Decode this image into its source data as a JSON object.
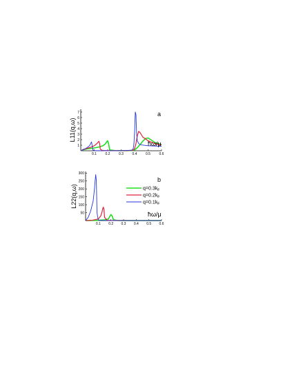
{
  "chart_data": [
    {
      "type": "line",
      "panel_label": "a",
      "ylabel": "L11(q,ω)",
      "xlabel": "ħω/μ",
      "xlim": [
        0,
        0.6
      ],
      "ylim": [
        0,
        7.5
      ],
      "xticks": [
        0.1,
        0.2,
        0.3,
        0.4,
        0.5,
        0.6
      ],
      "yticks": [
        1,
        2,
        3,
        4,
        5,
        6,
        7
      ],
      "series": [
        {
          "name": "q=0.3k_F",
          "color": "#22dd22",
          "width": 1.6,
          "x": [
            0.0,
            0.02,
            0.05,
            0.1,
            0.14,
            0.165,
            0.185,
            0.195,
            0.2,
            0.207,
            0.215,
            0.25,
            0.3,
            0.35,
            0.385,
            0.4,
            0.42,
            0.44,
            0.46,
            0.48,
            0.5,
            0.52,
            0.55,
            0.6
          ],
          "y": [
            0.0,
            0.2,
            0.35,
            0.5,
            0.7,
            0.9,
            1.3,
            1.7,
            1.8,
            1.2,
            0.15,
            0.04,
            0.02,
            0.02,
            0.05,
            0.15,
            0.55,
            1.1,
            1.7,
            2.2,
            2.3,
            2.0,
            1.5,
            1.1
          ]
        },
        {
          "name": "q=0.2k_F",
          "color": "#e0203a",
          "width": 1.2,
          "x": [
            0.0,
            0.02,
            0.05,
            0.08,
            0.1,
            0.12,
            0.13,
            0.135,
            0.14,
            0.145,
            0.16,
            0.2,
            0.3,
            0.35,
            0.39,
            0.4,
            0.41,
            0.42,
            0.43,
            0.44,
            0.46,
            0.5,
            0.55,
            0.6
          ],
          "y": [
            0.0,
            0.25,
            0.45,
            0.7,
            0.9,
            1.3,
            1.6,
            1.7,
            1.3,
            0.3,
            0.05,
            0.02,
            0.02,
            0.03,
            0.1,
            0.4,
            1.3,
            2.7,
            3.5,
            3.3,
            2.5,
            1.8,
            1.3,
            1.05
          ]
        },
        {
          "name": "q=0.1k_F",
          "color": "#2233dd",
          "width": 0.9,
          "x": [
            0.0,
            0.02,
            0.04,
            0.06,
            0.07,
            0.075,
            0.08,
            0.085,
            0.09,
            0.1,
            0.2,
            0.3,
            0.38,
            0.39,
            0.395,
            0.4,
            0.405,
            0.41,
            0.415,
            0.42,
            0.43,
            0.45,
            0.5,
            0.6
          ],
          "y": [
            0.0,
            0.2,
            0.45,
            0.8,
            1.1,
            1.4,
            1.6,
            0.9,
            0.15,
            0.02,
            0.01,
            0.01,
            0.1,
            0.4,
            1.3,
            3.5,
            7.0,
            6.5,
            3.0,
            1.8,
            1.3,
            1.05,
            0.9,
            0.8
          ]
        }
      ]
    },
    {
      "type": "line",
      "panel_label": "b",
      "ylabel": "L22(q,ω)",
      "xlabel": "ħω/μ",
      "xlim": [
        0,
        0.6
      ],
      "ylim": [
        0,
        310
      ],
      "xticks": [
        0.1,
        0.2,
        0.3,
        0.4,
        0.5,
        0.6
      ],
      "yticks": [
        50,
        100,
        150,
        200,
        250,
        300
      ],
      "legend": "top-right",
      "series": [
        {
          "name": "q=0.3k_F",
          "color": "#22dd22",
          "width": 1.6,
          "x": [
            0.0,
            0.05,
            0.1,
            0.15,
            0.18,
            0.19,
            0.2,
            0.21,
            0.22,
            0.25,
            0.3,
            0.4,
            0.5,
            0.6
          ],
          "y": [
            0.0,
            1.0,
            2.0,
            4.0,
            10.0,
            25.0,
            38.0,
            28.0,
            5.0,
            1.0,
            0.5,
            0.3,
            0.2,
            0.2
          ]
        },
        {
          "name": "q=0.2k_F",
          "color": "#e0203a",
          "width": 1.2,
          "x": [
            0.0,
            0.05,
            0.1,
            0.12,
            0.13,
            0.135,
            0.14,
            0.145,
            0.15,
            0.17,
            0.2,
            0.3,
            0.4,
            0.5,
            0.6
          ],
          "y": [
            0.0,
            2.0,
            10.0,
            30.0,
            55.0,
            75.0,
            85.0,
            70.0,
            20.0,
            2.0,
            1.0,
            0.5,
            0.3,
            0.2,
            0.2
          ]
        },
        {
          "name": "q=0.1k_F",
          "color": "#2233dd",
          "width": 0.9,
          "x": [
            0.0,
            0.02,
            0.04,
            0.06,
            0.07,
            0.075,
            0.08,
            0.085,
            0.09,
            0.1,
            0.15,
            0.3,
            0.45,
            0.6
          ],
          "y": [
            0.0,
            20.0,
            60.0,
            125.0,
            200.0,
            250.0,
            290.0,
            250.0,
            50.0,
            3.0,
            1.0,
            0.5,
            0.3,
            0.2
          ]
        }
      ]
    }
  ],
  "legend": [
    {
      "prefix": "q=0.3k",
      "sub": "F",
      "color": "#22dd22"
    },
    {
      "prefix": "q=0.2k",
      "sub": "F",
      "color": "#e0203a"
    },
    {
      "prefix": "q=0.1k",
      "sub": "F",
      "color": "#2233dd"
    }
  ]
}
